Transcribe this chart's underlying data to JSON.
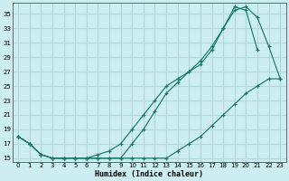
{
  "xlabel": "Humidex (Indice chaleur)",
  "bg_color": "#cceef2",
  "grid_color": "#b0d8dd",
  "line_color": "#1a7a6e",
  "xlim": [
    -0.5,
    23.5
  ],
  "ylim": [
    14.5,
    36.5
  ],
  "xticks": [
    0,
    1,
    2,
    3,
    4,
    5,
    6,
    7,
    8,
    9,
    10,
    11,
    12,
    13,
    14,
    15,
    16,
    17,
    18,
    19,
    20,
    21,
    22,
    23
  ],
  "yticks": [
    15,
    17,
    19,
    21,
    23,
    25,
    27,
    29,
    31,
    33,
    35
  ],
  "curve1_x": [
    0,
    1,
    2,
    3,
    4,
    5,
    6,
    7,
    8,
    9,
    10,
    11,
    12,
    13,
    14,
    15,
    16,
    17,
    18,
    19,
    20,
    21,
    22,
    23
  ],
  "curve1_y": [
    18,
    17,
    15.5,
    15,
    15,
    15,
    15,
    15.5,
    16,
    17,
    19,
    21,
    23,
    25,
    26,
    27,
    28,
    30,
    33,
    36,
    35.5,
    30,
    null,
    null
  ],
  "curve2_x": [
    0,
    1,
    2,
    3,
    4,
    5,
    6,
    7,
    8,
    9,
    10,
    11,
    12,
    13,
    14,
    15,
    16,
    17,
    18,
    19,
    20,
    21,
    22,
    23
  ],
  "curve2_y": [
    18,
    17,
    15.5,
    15,
    15,
    15,
    15,
    15,
    15,
    15,
    17,
    19,
    21.5,
    24,
    25.5,
    27,
    28.5,
    30.5,
    33,
    35.5,
    36,
    34.5,
    30.5,
    26
  ],
  "curve3_x": [
    0,
    1,
    2,
    3,
    4,
    5,
    6,
    7,
    8,
    9,
    10,
    11,
    12,
    13,
    14,
    15,
    16,
    17,
    18,
    19,
    20,
    21,
    22,
    23
  ],
  "curve3_y": [
    18,
    17,
    15.5,
    15,
    15,
    15,
    15,
    15,
    15,
    15,
    15,
    15,
    15,
    15,
    16,
    17,
    18,
    19.5,
    21,
    22.5,
    24,
    25,
    26,
    26
  ]
}
